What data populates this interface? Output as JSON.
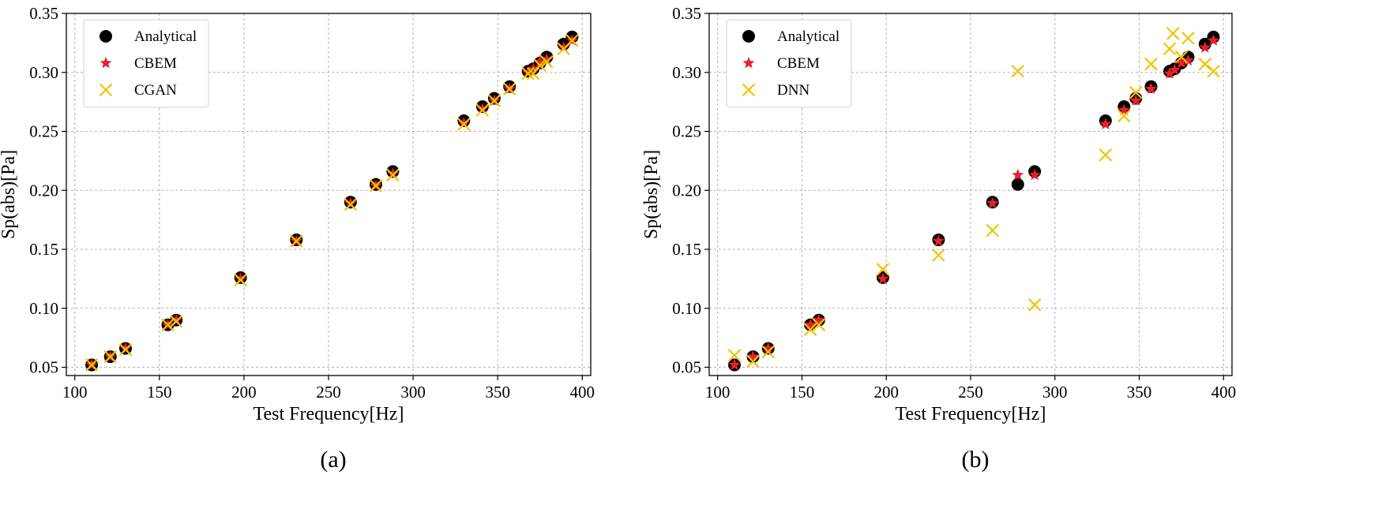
{
  "colors": {
    "analytical": "#000000",
    "cbem": "#e8202a",
    "model": "#f2c300",
    "grid": "#b0b0b0",
    "axis": "#000000"
  },
  "chart_data": [
    {
      "type": "scatter",
      "caption": "(a)",
      "xlabel": "Test Frequency[Hz]",
      "ylabel": "Sp(abs)[Pa]",
      "xlim": [
        95,
        405
      ],
      "ylim": [
        0.043,
        0.35
      ],
      "xticks": [
        100,
        150,
        200,
        250,
        300,
        350,
        400
      ],
      "xtick_labels": [
        "100",
        "150",
        "200",
        "250",
        "300",
        "350",
        "400"
      ],
      "yticks": [
        0.05,
        0.1,
        0.15,
        0.2,
        0.25,
        0.3,
        0.35
      ],
      "ytick_labels": [
        "0.05",
        "0.10",
        "0.15",
        "0.20",
        "0.25",
        "0.30",
        "0.35"
      ],
      "grid": true,
      "legend_position": "top-left",
      "series": [
        {
          "name": "Analytical",
          "marker": "circle",
          "color_key": "analytical",
          "x": [
            110,
            121,
            130,
            155,
            160,
            198,
            231,
            263,
            278,
            288,
            330,
            341,
            348,
            357,
            368,
            371,
            375,
            379,
            389,
            394
          ],
          "y": [
            0.052,
            0.059,
            0.066,
            0.086,
            0.09,
            0.126,
            0.158,
            0.19,
            0.205,
            0.216,
            0.259,
            0.271,
            0.278,
            0.288,
            0.301,
            0.303,
            0.308,
            0.313,
            0.324,
            0.33
          ]
        },
        {
          "name": "CBEM",
          "marker": "star",
          "color_key": "cbem",
          "x": [
            110,
            121,
            130,
            155,
            160,
            198,
            231,
            263,
            278,
            288,
            330,
            341,
            348,
            357,
            368,
            371,
            375,
            379,
            389,
            394
          ],
          "y": [
            0.052,
            0.059,
            0.066,
            0.086,
            0.09,
            0.125,
            0.157,
            0.189,
            0.204,
            0.214,
            0.257,
            0.269,
            0.276,
            0.286,
            0.3,
            0.303,
            0.309,
            0.311,
            0.321,
            0.327
          ]
        },
        {
          "name": "CGAN",
          "marker": "x",
          "color_key": "model",
          "x": [
            110,
            121,
            130,
            155,
            160,
            198,
            231,
            263,
            278,
            288,
            330,
            341,
            348,
            357,
            368,
            371,
            375,
            379,
            389,
            394
          ],
          "y": [
            0.052,
            0.059,
            0.065,
            0.086,
            0.089,
            0.124,
            0.157,
            0.188,
            0.204,
            0.213,
            0.256,
            0.268,
            0.276,
            0.286,
            0.299,
            0.299,
            0.306,
            0.309,
            0.32,
            0.327
          ]
        }
      ]
    },
    {
      "type": "scatter",
      "caption": "(b)",
      "xlabel": "Test Frequency[Hz]",
      "ylabel": "Sp(abs)[Pa]",
      "xlim": [
        95,
        405
      ],
      "ylim": [
        0.043,
        0.35
      ],
      "xticks": [
        100,
        150,
        200,
        250,
        300,
        350,
        400
      ],
      "xtick_labels": [
        "100",
        "150",
        "200",
        "250",
        "300",
        "350",
        "400"
      ],
      "yticks": [
        0.05,
        0.1,
        0.15,
        0.2,
        0.25,
        0.3,
        0.35
      ],
      "ytick_labels": [
        "0.05",
        "0.10",
        "0.15",
        "0.20",
        "0.25",
        "0.30",
        "0.35"
      ],
      "grid": true,
      "legend_position": "top-left",
      "series": [
        {
          "name": "Analytical",
          "marker": "circle",
          "color_key": "analytical",
          "x": [
            110,
            121,
            130,
            155,
            160,
            198,
            231,
            263,
            278,
            288,
            330,
            341,
            348,
            357,
            368,
            371,
            375,
            379,
            389,
            394
          ],
          "y": [
            0.052,
            0.059,
            0.066,
            0.086,
            0.09,
            0.126,
            0.158,
            0.19,
            0.205,
            0.216,
            0.259,
            0.271,
            0.278,
            0.288,
            0.301,
            0.303,
            0.308,
            0.313,
            0.324,
            0.33
          ]
        },
        {
          "name": "CBEM",
          "marker": "star",
          "color_key": "cbem",
          "x": [
            110,
            121,
            130,
            155,
            160,
            198,
            231,
            263,
            278,
            288,
            330,
            341,
            348,
            357,
            368,
            371,
            375,
            379,
            389,
            394
          ],
          "y": [
            0.052,
            0.059,
            0.066,
            0.086,
            0.09,
            0.125,
            0.157,
            0.189,
            0.213,
            0.213,
            0.256,
            0.268,
            0.276,
            0.286,
            0.299,
            0.302,
            0.308,
            0.31,
            0.321,
            0.327
          ]
        },
        {
          "name": "DNN",
          "marker": "x",
          "color_key": "model",
          "x": [
            110,
            121,
            130,
            155,
            160,
            198,
            231,
            263,
            278,
            288,
            330,
            341,
            348,
            357,
            368,
            370,
            375,
            379,
            389,
            394
          ],
          "y": [
            0.06,
            0.055,
            0.063,
            0.082,
            0.086,
            0.133,
            0.145,
            0.166,
            0.301,
            0.103,
            0.23,
            0.263,
            0.283,
            0.307,
            0.32,
            0.333,
            0.313,
            0.329,
            0.307,
            0.301
          ]
        }
      ]
    }
  ]
}
